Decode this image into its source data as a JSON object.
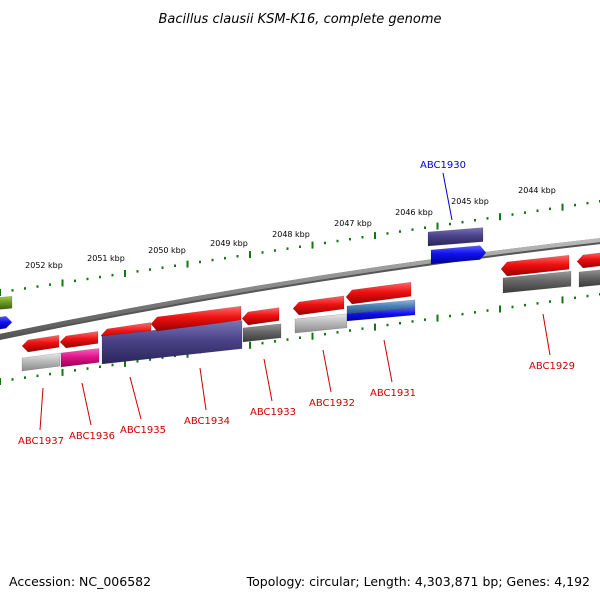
{
  "title": "Bacillus clausii KSM-K16, complete genome",
  "footer": {
    "accession": "Accession: NC_006582",
    "summary": "Topology: circular; Length: 4,303,871 bp; Genes: 4,192"
  },
  "ruler_labels": [
    "2044 kbp",
    "2045 kbp",
    "2046 kbp",
    "2047 kbp",
    "2048 kbp",
    "2049 kbp",
    "2050 kbp",
    "2051 kbp",
    "2052 kbp"
  ],
  "gene_labels": [
    "ABC1929",
    "ABC1930",
    "ABC1931",
    "ABC1932",
    "ABC1933",
    "ABC1934",
    "ABC1935",
    "ABC1936",
    "ABC1937"
  ],
  "colors": {
    "cds_red": "#ee1111",
    "cog_slate": "#4a4288",
    "cog_blue": "#1010ee",
    "cog_gray": "#666666",
    "cog_lightgray": "#bbbbbb",
    "cog_magenta": "#e0158a",
    "cog_steel": "#4a7fb5",
    "cog_green": "#6a9a20",
    "backbone": "#888888",
    "tick_green": "#117711",
    "label_red": "#cc0000",
    "label_blue": "#0000cc"
  }
}
